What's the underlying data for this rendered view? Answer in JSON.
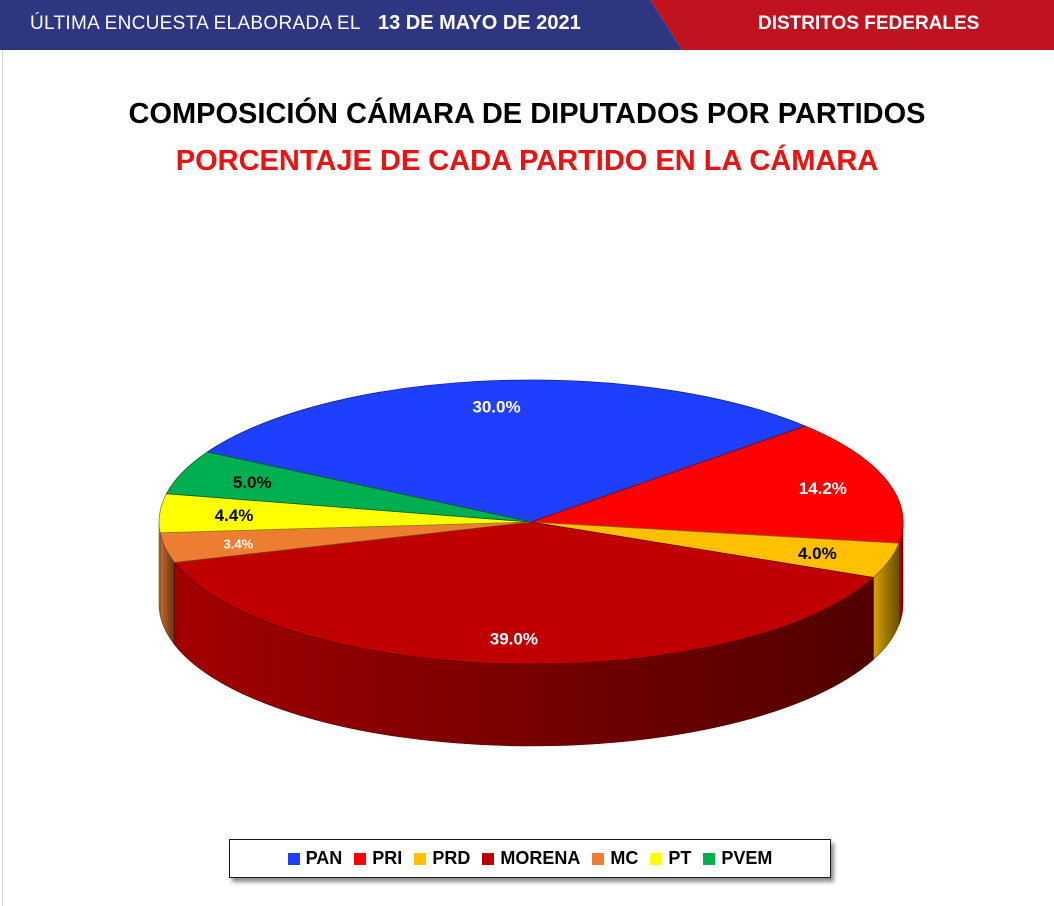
{
  "header": {
    "survey_label": "ÚLTIMA ENCUESTA ELABORADA EL",
    "survey_date": "13 DE MAYO DE 2021",
    "section": "DISTRITOS FEDERALES",
    "colors": {
      "blue": "#2e3682",
      "red": "#c1121f"
    }
  },
  "chart_data": {
    "type": "pie",
    "title": "COMPOSICIÓN CÁMARA DE DIPUTADOS POR PARTIDOS",
    "subtitle": "PORCENTAJE DE CADA PARTIDO EN LA CÁMARA",
    "categories": [
      "PAN",
      "PRI",
      "PRD",
      "MORENA",
      "MC",
      "PT",
      "PVEM"
    ],
    "values": [
      30.0,
      14.2,
      4.0,
      39.0,
      3.4,
      4.4,
      5.0
    ],
    "data_labels": [
      "30.0%",
      "14.2%",
      "4.0%",
      "39.0%",
      "3.4%",
      "4.4%",
      "5.0%"
    ],
    "colors": [
      "#1f3fff",
      "#ff0000",
      "#ffc000",
      "#c00000",
      "#ed7d31",
      "#ffff00",
      "#00b050"
    ],
    "legend_placement": "bottom",
    "style": "3d"
  }
}
